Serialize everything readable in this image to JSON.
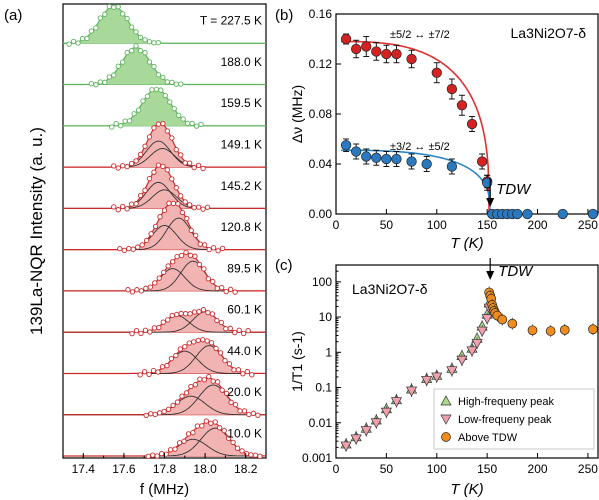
{
  "colors": {
    "green": "#5bb35b",
    "green_fill": "#a9d99a",
    "red": "#cc2a2a",
    "red_fill": "#f2b3b3",
    "marker_red": "#d42222",
    "marker_blue": "#2a79bf",
    "fit_red": "#e03030",
    "fit_blue": "#2c86c6",
    "tri_green": "#a8d98a",
    "tri_pink": "#f2a0ad",
    "orange": "#f08c1e"
  },
  "chart_data": [
    {
      "panel": "(a)",
      "type": "line",
      "xlabel": "f (MHz)",
      "ylabel": "139La-NQR Intensity (a. u.)",
      "xlim": [
        17.3,
        18.3
      ],
      "xticks": [
        "17.4",
        "17.6",
        "17.8",
        "18.0",
        "18.2"
      ],
      "traces": [
        {
          "label": "T = 227.5 K",
          "color": "green",
          "components": [
            {
              "center": 17.55,
              "width": 0.07,
              "amp": 1.0
            }
          ]
        },
        {
          "label": "188.0 K",
          "color": "green",
          "components": [
            {
              "center": 17.66,
              "width": 0.07,
              "amp": 1.0
            }
          ]
        },
        {
          "label": "159.5 K",
          "color": "green",
          "components": [
            {
              "center": 17.76,
              "width": 0.07,
              "amp": 1.0
            }
          ]
        },
        {
          "label": "149.1 K",
          "color": "red",
          "components": [
            {
              "center": 17.77,
              "width": 0.06,
              "amp": 0.7
            },
            {
              "center": 17.79,
              "width": 0.06,
              "amp": 0.5
            }
          ]
        },
        {
          "label": "145.2 K",
          "color": "red",
          "components": [
            {
              "center": 17.77,
              "width": 0.06,
              "amp": 0.7
            },
            {
              "center": 17.8,
              "width": 0.06,
              "amp": 0.5
            }
          ]
        },
        {
          "label": "120.8 K",
          "color": "red",
          "components": [
            {
              "center": 17.8,
              "width": 0.06,
              "amp": 0.65
            },
            {
              "center": 17.87,
              "width": 0.06,
              "amp": 0.85
            }
          ]
        },
        {
          "label": "89.5 K",
          "color": "red",
          "components": [
            {
              "center": 17.84,
              "width": 0.06,
              "amp": 0.6
            },
            {
              "center": 17.94,
              "width": 0.06,
              "amp": 0.8
            }
          ]
        },
        {
          "label": "60.1 K",
          "color": "red",
          "components": [
            {
              "center": 17.86,
              "width": 0.06,
              "amp": 0.45
            },
            {
              "center": 18.0,
              "width": 0.06,
              "amp": 0.55
            }
          ]
        },
        {
          "label": "44.0 K",
          "color": "red",
          "components": [
            {
              "center": 17.9,
              "width": 0.065,
              "amp": 0.6
            },
            {
              "center": 18.02,
              "width": 0.065,
              "amp": 0.75
            }
          ]
        },
        {
          "label": "20.0 K",
          "color": "red",
          "components": [
            {
              "center": 17.93,
              "width": 0.07,
              "amp": 0.5
            },
            {
              "center": 18.04,
              "width": 0.07,
              "amp": 0.8
            }
          ]
        },
        {
          "label": "10.0 K",
          "color": "red",
          "components": [
            {
              "center": 17.94,
              "width": 0.07,
              "amp": 0.45
            },
            {
              "center": 18.05,
              "width": 0.07,
              "amp": 0.75
            }
          ]
        }
      ]
    },
    {
      "panel": "(b)",
      "type": "scatter",
      "title": "La3Ni2O7-δ",
      "xlabel": "T (K)",
      "ylabel": "Δν (MHz)",
      "xlim": [
        0,
        260
      ],
      "ylim": [
        0,
        0.16
      ],
      "xticks": [
        "0",
        "50",
        "100",
        "150",
        "200",
        "250"
      ],
      "yticks": [
        "0.00",
        "0.04",
        "0.08",
        "0.12",
        "0.16"
      ],
      "annotation": "TDW",
      "series": [
        {
          "name": "±5/2 ↔ ±7/2",
          "color": "marker_red",
          "x": [
            10,
            20,
            30,
            40,
            50,
            60,
            75,
            100,
            115,
            125,
            135,
            145,
            150
          ],
          "y": [
            0.14,
            0.132,
            0.134,
            0.13,
            0.128,
            0.128,
            0.124,
            0.113,
            0.1,
            0.087,
            0.072,
            0.042,
            0.026
          ],
          "err": [
            0.004,
            0.007,
            0.008,
            0.007,
            0.007,
            0.007,
            0.007,
            0.008,
            0.008,
            0.008,
            0.006,
            0.006,
            0.005
          ]
        },
        {
          "name": "±3/2 ↔ ±5/2",
          "color": "marker_blue",
          "x": [
            10,
            20,
            30,
            40,
            50,
            60,
            75,
            90,
            115,
            150
          ],
          "y": [
            0.055,
            0.05,
            0.046,
            0.045,
            0.044,
            0.044,
            0.042,
            0.04,
            0.038,
            0.025
          ],
          "err": [
            0.005,
            0.006,
            0.006,
            0.006,
            0.006,
            0.006,
            0.006,
            0.006,
            0.006,
            0.006
          ]
        },
        {
          "name": "",
          "color": "marker_blue",
          "x": [
            155,
            160,
            165,
            170,
            175,
            180,
            190,
            225,
            255
          ],
          "y": [
            0,
            0,
            0,
            0,
            0,
            0,
            0,
            0,
            0
          ]
        }
      ]
    },
    {
      "panel": "(c)",
      "type": "scatter",
      "title": "La3Ni2O7-δ",
      "xlabel": "T (K)",
      "ylabel": "1/T1 (s-1)",
      "xlim": [
        0,
        260
      ],
      "ylim": [
        0.001,
        300
      ],
      "yscale": "log",
      "xticks": [
        "0",
        "50",
        "100",
        "150",
        "200",
        "250"
      ],
      "yticks": [
        "0.001",
        "0.01",
        "0.1",
        "1",
        "10",
        "100"
      ],
      "annotation": "TDW",
      "legend_position": "bottom-right",
      "series": [
        {
          "name": "High-frequeny peak",
          "color": "tri_green",
          "marker": "triangle-up",
          "x": [
            10,
            20,
            30,
            40,
            50,
            60,
            75,
            90,
            100,
            115,
            125,
            135,
            140,
            145,
            150,
            152
          ],
          "y": [
            0.0025,
            0.004,
            0.007,
            0.012,
            0.025,
            0.045,
            0.09,
            0.18,
            0.22,
            0.35,
            0.8,
            1.3,
            2.5,
            5.5,
            12,
            25
          ]
        },
        {
          "name": "Low-frequeny peak",
          "color": "tri_pink",
          "marker": "triangle-down",
          "x": [
            10,
            20,
            30,
            40,
            50,
            60,
            75,
            90,
            100,
            115,
            125,
            135,
            140,
            145,
            150,
            152
          ],
          "y": [
            0.0022,
            0.0035,
            0.006,
            0.01,
            0.02,
            0.04,
            0.08,
            0.16,
            0.2,
            0.3,
            0.6,
            1.1,
            1.8,
            4,
            9,
            18
          ]
        },
        {
          "name": "Above TDW",
          "color": "orange",
          "marker": "circle",
          "x": [
            152,
            153,
            154,
            155,
            156,
            157,
            158,
            160,
            165,
            175,
            195,
            213,
            227,
            255
          ],
          "y": [
            50,
            40,
            33,
            22,
            18,
            15,
            13,
            11,
            8.5,
            6.5,
            4.2,
            4.0,
            4.3,
            4.5
          ]
        }
      ]
    }
  ]
}
